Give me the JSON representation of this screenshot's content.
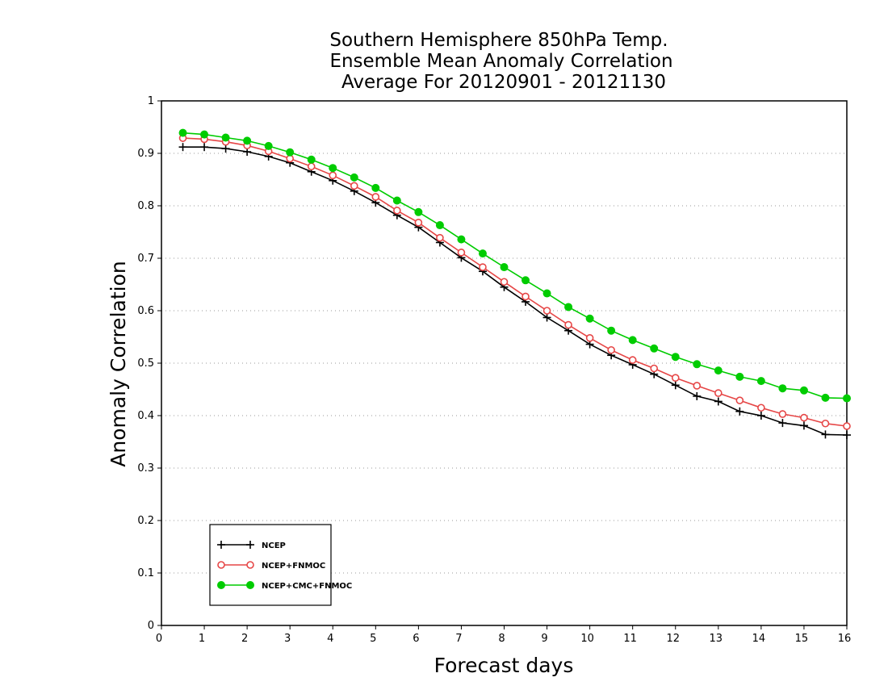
{
  "chart_data": {
    "type": "line",
    "title_lines": [
      "Southern Hemisphere 850hPa Temp.",
      "Ensemble Mean Anomaly Correlation",
      "Average For 20120901 - 20121130"
    ],
    "xlabel": "Forecast days",
    "ylabel": "Anomaly Correlation",
    "xlim": [
      0,
      16
    ],
    "ylim": [
      0,
      1
    ],
    "x_ticks": [
      0,
      1,
      2,
      3,
      4,
      5,
      6,
      7,
      8,
      9,
      10,
      11,
      12,
      13,
      14,
      15,
      16
    ],
    "y_ticks": [
      0,
      0.1,
      0.2,
      0.3,
      0.4,
      0.5,
      0.6,
      0.7,
      0.8,
      0.9,
      1
    ],
    "y_tick_labels": [
      "0",
      "0.1",
      "0.2",
      "0.3",
      "0.4",
      "0.5",
      "0.6",
      "0.7",
      "0.8",
      "0.9",
      "1"
    ],
    "grid": "horizontal dotted",
    "legend_position": "bottom-left",
    "x": [
      0.5,
      1.0,
      1.5,
      2.0,
      2.5,
      3.0,
      3.5,
      4.0,
      4.5,
      5.0,
      5.5,
      6.0,
      6.5,
      7.0,
      7.5,
      8.0,
      8.5,
      9.0,
      9.5,
      10.0,
      10.5,
      11.0,
      11.5,
      12.0,
      12.5,
      13.0,
      13.5,
      14.0,
      14.5,
      15.0,
      15.5,
      16.0
    ],
    "series": [
      {
        "name": "NCEP",
        "color": "#000000",
        "marker": "plus",
        "values": [
          0.912,
          0.912,
          0.909,
          0.903,
          0.894,
          0.882,
          0.865,
          0.848,
          0.828,
          0.806,
          0.782,
          0.759,
          0.73,
          0.701,
          0.675,
          0.645,
          0.617,
          0.587,
          0.562,
          0.536,
          0.515,
          0.497,
          0.479,
          0.458,
          0.437,
          0.427,
          0.408,
          0.4,
          0.386,
          0.381,
          0.364,
          0.363
        ]
      },
      {
        "name": "NCEP+FNMOC",
        "color": "#e64646",
        "marker": "open-circle",
        "values": [
          0.929,
          0.927,
          0.922,
          0.915,
          0.904,
          0.89,
          0.875,
          0.858,
          0.838,
          0.817,
          0.791,
          0.768,
          0.739,
          0.711,
          0.683,
          0.655,
          0.627,
          0.6,
          0.573,
          0.548,
          0.525,
          0.506,
          0.49,
          0.472,
          0.457,
          0.443,
          0.429,
          0.415,
          0.403,
          0.396,
          0.385,
          0.38
        ]
      },
      {
        "name": "NCEP+CMC+FNMOC",
        "color": "#00cc00",
        "marker": "filled-circle",
        "values": [
          0.939,
          0.936,
          0.93,
          0.924,
          0.914,
          0.902,
          0.888,
          0.872,
          0.854,
          0.834,
          0.81,
          0.788,
          0.763,
          0.736,
          0.709,
          0.683,
          0.658,
          0.633,
          0.607,
          0.585,
          0.562,
          0.544,
          0.528,
          0.512,
          0.498,
          0.486,
          0.474,
          0.466,
          0.452,
          0.448,
          0.434,
          0.433
        ]
      }
    ]
  }
}
